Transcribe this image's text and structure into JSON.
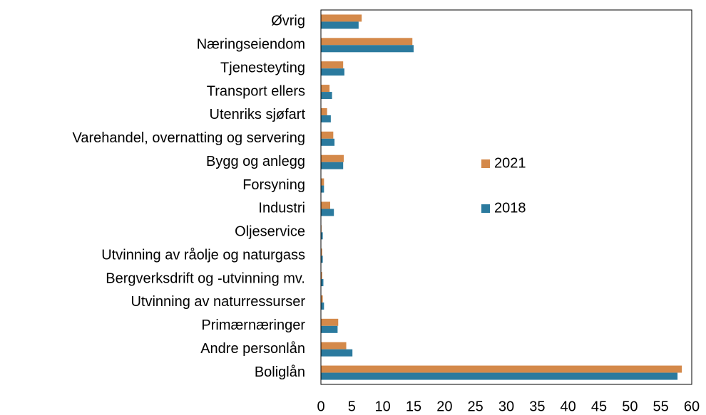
{
  "chart_data": {
    "type": "barh",
    "categories": [
      "Øvrig",
      "Næringseiendom",
      "Tjenesteyting",
      "Transport ellers",
      "Utenriks sjøfart",
      "Varehandel, overnatting og servering",
      "Bygg og anlegg",
      "Forsyning",
      "Industri",
      "Oljeservice",
      "Utvinning av råolje og naturgass",
      "Bergverksdrift og -utvinning mv.",
      "Utvinning av naturressurser",
      "Primærnæringer",
      "Andre personlån",
      "Boliglån"
    ],
    "series": [
      {
        "name": "2021",
        "color": "#d4894a",
        "values": [
          6.6,
          14.8,
          3.6,
          1.4,
          1.0,
          2.0,
          3.7,
          0.5,
          1.5,
          0.1,
          0.2,
          0.2,
          0.3,
          2.8,
          4.1,
          58.4
        ]
      },
      {
        "name": "2018",
        "color": "#2b7a9e",
        "values": [
          6.1,
          15.0,
          3.8,
          1.8,
          1.6,
          2.2,
          3.6,
          0.5,
          2.1,
          0.3,
          0.3,
          0.4,
          0.5,
          2.7,
          5.1,
          57.7
        ]
      }
    ],
    "xlim": [
      0,
      60
    ],
    "xticks": [
      0,
      5,
      10,
      15,
      20,
      25,
      30,
      35,
      40,
      45,
      50,
      55,
      60
    ]
  }
}
